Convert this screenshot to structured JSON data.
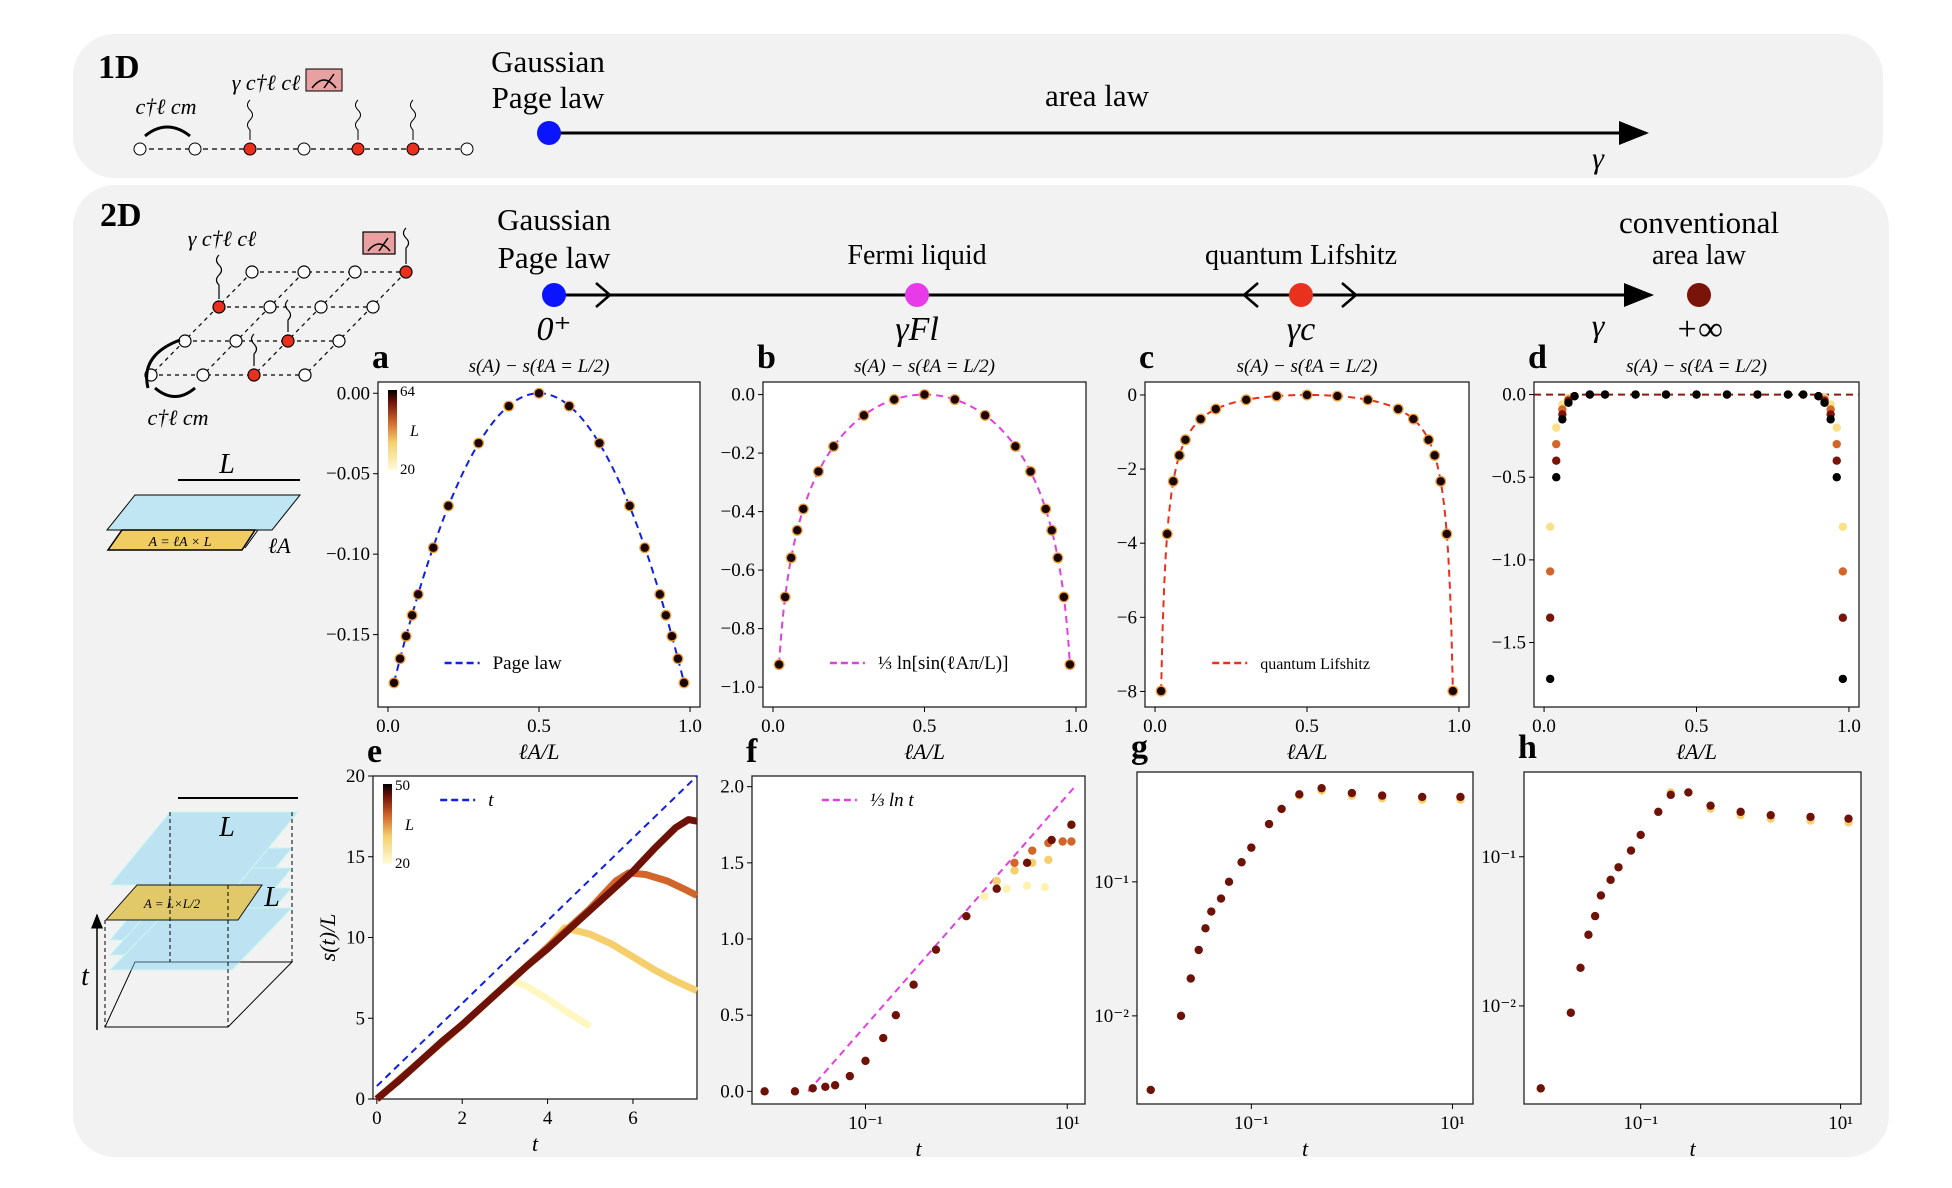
{
  "oneD": {
    "label": "1D",
    "hop_label": "c†ℓ cm",
    "meas_label": "γ c†ℓ cℓ",
    "point_label_1": "Gaussian",
    "point_label_2": "Page law",
    "region_label": "area law",
    "axis_label": "γ"
  },
  "twoD": {
    "label": "2D",
    "hop_label": "c†ℓ cm",
    "meas_label": "γ c†ℓ cℓ",
    "phases": [
      {
        "line1": "Gaussian",
        "line2": "Page law",
        "value": "0⁺",
        "color": "#0a14ff"
      },
      {
        "line1": "",
        "line2": "Fermi liquid",
        "value": "γFl",
        "color": "#e83ae8"
      },
      {
        "line1": "",
        "line2": "quantum Lifshitz",
        "value": "γc",
        "color": "#e8321e"
      },
      {
        "line1": "conventional",
        "line2": "area law",
        "value": "+∞",
        "color": "#7a1308"
      }
    ],
    "axis_label": "γ",
    "slab1": {
      "L": "L",
      "area": "A = ℓA × L",
      "width": "ℓA"
    },
    "slab2": {
      "L": "L",
      "area": "A = L×L/2",
      "side": "L",
      "time": "t"
    }
  },
  "colormap": {
    "L20": "#fff7c2",
    "L30": "#f5cf6c",
    "L40": "#d2662a",
    "L50": "#6e1208",
    "L64": "#000000"
  },
  "colorbars": [
    {
      "panel": "a",
      "max": "64",
      "label": "L",
      "min": "20"
    },
    {
      "panel": "e",
      "max": "50",
      "label": "L",
      "min": "20"
    }
  ],
  "chart_data": [
    {
      "id": "a",
      "type": "scatter",
      "title": "s(A) − s(ℓA = L/2)",
      "xlabel": "ℓA/L",
      "ylabel": "",
      "xlim": [
        -0.033,
        1.033
      ],
      "ylim": [
        -0.195,
        0.007
      ],
      "xscale": "linear",
      "yscale": "linear",
      "xticks": [
        0,
        0.5,
        1.0
      ],
      "xticklabels": [
        "0.0",
        "0.5",
        "1.0"
      ],
      "yticks": [
        0,
        -0.05,
        -0.1,
        -0.15
      ],
      "yticklabels": [
        "0.00",
        "−0.05",
        "−0.10",
        "−0.15"
      ],
      "x": [
        0.02,
        0.04,
        0.06,
        0.08,
        0.1,
        0.15,
        0.2,
        0.3,
        0.4,
        0.5,
        0.6,
        0.7,
        0.8,
        0.85,
        0.9,
        0.92,
        0.94,
        0.96,
        0.98
      ],
      "series": [
        {
          "color": "#1a0500",
          "y": [
            -0.18,
            -0.165,
            -0.151,
            -0.138,
            -0.125,
            -0.096,
            -0.07,
            -0.031,
            -0.008,
            0,
            -0.008,
            -0.031,
            -0.07,
            -0.096,
            -0.125,
            -0.138,
            -0.151,
            -0.165,
            -0.18
          ]
        }
      ],
      "fit": {
        "name": "Page law",
        "color": "#1020e0",
        "formula": "0.78*(x*(1-x)-0.25)"
      },
      "legend": "lower-center"
    },
    {
      "id": "b",
      "type": "scatter",
      "title": "s(A) − s(ℓA = L/2)",
      "xlabel": "ℓA/L",
      "ylabel": "",
      "xlim": [
        -0.033,
        1.033
      ],
      "ylim": [
        -1.068,
        0.043
      ],
      "xscale": "linear",
      "yscale": "linear",
      "xticks": [
        0,
        0.5,
        1.0
      ],
      "xticklabels": [
        "0.0",
        "0.5",
        "1.0"
      ],
      "yticks": [
        0,
        -0.2,
        -0.4,
        -0.6,
        -0.8,
        -1.0
      ],
      "yticklabels": [
        "0.0",
        "−0.2",
        "−0.4",
        "−0.6",
        "−0.8",
        "−1.0"
      ],
      "x": [
        0.02,
        0.04,
        0.06,
        0.08,
        0.1,
        0.15,
        0.2,
        0.3,
        0.4,
        0.5,
        0.6,
        0.7,
        0.8,
        0.85,
        0.9,
        0.92,
        0.94,
        0.96,
        0.98
      ],
      "series": [
        {
          "color": "#1a0500",
          "y": [
            -0.923,
            -0.692,
            -0.558,
            -0.464,
            -0.391,
            -0.263,
            -0.177,
            -0.071,
            -0.017,
            0,
            -0.017,
            -0.071,
            -0.177,
            -0.263,
            -0.391,
            -0.464,
            -0.558,
            -0.692,
            -0.923
          ]
        }
      ],
      "fit": {
        "name": "⅓ ln[sin(ℓAπ/L)]",
        "color": "#e040e0",
        "formula": "ln(sin(pi*x))/3"
      },
      "legend": "lower-center"
    },
    {
      "id": "c",
      "type": "scatter",
      "title": "s(A) − s(ℓA = L/2)",
      "xlabel": "ℓA/L",
      "ylabel": "",
      "xlim": [
        -0.033,
        1.033
      ],
      "ylim": [
        -8.42,
        0.35
      ],
      "xscale": "linear",
      "yscale": "linear",
      "xticks": [
        0,
        0.5,
        1.0
      ],
      "xticklabels": [
        "0.0",
        "0.5",
        "1.0"
      ],
      "yticks": [
        0,
        -2,
        -4,
        -6,
        -8
      ],
      "yticklabels": [
        "0",
        "−2",
        "−4",
        "−6",
        "−8"
      ],
      "x": [
        0.02,
        0.04,
        0.06,
        0.08,
        0.1,
        0.15,
        0.2,
        0.3,
        0.4,
        0.5,
        0.6,
        0.7,
        0.8,
        0.85,
        0.9,
        0.92,
        0.94,
        0.96,
        0.98
      ],
      "series": [
        {
          "color": "#1a0500",
          "y": [
            -7.99,
            -3.75,
            -2.33,
            -1.63,
            -1.21,
            -0.65,
            -0.38,
            -0.13,
            -0.03,
            0,
            -0.03,
            -0.13,
            -0.38,
            -0.65,
            -1.21,
            -1.63,
            -2.33,
            -3.75,
            -7.99
          ]
        }
      ],
      "fit": {
        "name": "quantum Lifshitz",
        "color": "#e8301c",
        "formula": "-0.17*(1/x+1/(1-x)-4)"
      },
      "legend": "lower-center"
    },
    {
      "id": "d",
      "type": "scatter",
      "title": "s(A) − s(ℓA = L/2)",
      "xlabel": "ℓA/L",
      "ylabel": "",
      "xlim": [
        -0.033,
        1.033
      ],
      "ylim": [
        -1.89,
        0.076
      ],
      "xscale": "linear",
      "yscale": "linear",
      "xticks": [
        0,
        0.5,
        1.0
      ],
      "xticklabels": [
        "0.0",
        "0.5",
        "1.0"
      ],
      "yticks": [
        0,
        -0.5,
        -1.0,
        -1.5
      ],
      "yticklabels": [
        "0.0",
        "−0.5",
        "−1.0",
        "−1.5"
      ],
      "x": [
        0.02,
        0.04,
        0.06,
        0.08,
        0.1,
        0.15,
        0.2,
        0.3,
        0.4,
        0.5,
        0.6,
        0.7,
        0.8,
        0.85,
        0.9,
        0.92,
        0.94,
        0.96,
        0.98
      ],
      "series": [
        {
          "color": "#fbe08a",
          "y": [
            -0.8,
            -0.2,
            -0.06,
            -0.02,
            -0.01,
            0,
            0,
            0,
            0,
            0,
            0,
            0,
            0,
            0,
            -0.01,
            -0.02,
            -0.06,
            -0.2,
            -0.8
          ]
        },
        {
          "color": "#d2662a",
          "y": [
            -1.07,
            -0.3,
            -0.09,
            -0.03,
            -0.01,
            0,
            0,
            0,
            0,
            0,
            0,
            0,
            0,
            0,
            -0.01,
            -0.03,
            -0.09,
            -0.3,
            -1.07
          ]
        },
        {
          "color": "#7a1308",
          "y": [
            -1.35,
            -0.4,
            -0.12,
            -0.04,
            -0.01,
            0,
            0,
            0,
            0,
            0,
            0,
            0,
            0,
            0,
            -0.01,
            -0.04,
            -0.12,
            -0.4,
            -1.35
          ]
        },
        {
          "color": "#000000",
          "y": [
            -1.72,
            -0.5,
            -0.15,
            -0.05,
            -0.01,
            0,
            0,
            0,
            0,
            0,
            0,
            0,
            0,
            0,
            -0.01,
            -0.05,
            -0.15,
            -0.5,
            -1.72
          ]
        }
      ],
      "hline": {
        "y": 0,
        "color": "#8a1a10"
      }
    },
    {
      "id": "e",
      "type": "line",
      "title": "",
      "xlabel": "t",
      "ylabel": "s(t)/L",
      "xlim": [
        -0.09,
        7.5
      ],
      "ylim": [
        0,
        20
      ],
      "xscale": "linear",
      "yscale": "linear",
      "xticks": [
        0,
        2,
        4,
        6
      ],
      "xticklabels": [
        "0",
        "2",
        "4",
        "6"
      ],
      "yticks": [
        0,
        5,
        10,
        15,
        20
      ],
      "yticklabels": [
        "0",
        "5",
        "10",
        "15",
        "20"
      ],
      "series": [
        {
          "color": "#fff7c2",
          "x": [
            0,
            1,
            2,
            3,
            3.1,
            3.5,
            4,
            4.5,
            5
          ],
          "y": [
            0,
            2.3,
            4.6,
            7.0,
            7.4,
            7.0,
            6.2,
            5.3,
            4.5
          ]
        },
        {
          "color": "#f5cf6c",
          "x": [
            0,
            1,
            2,
            3,
            4,
            4.4,
            5,
            5.5,
            6,
            6.5,
            7,
            7.5
          ],
          "y": [
            0,
            2.3,
            4.6,
            7.0,
            9.4,
            10.6,
            10.2,
            9.6,
            8.8,
            8.0,
            7.3,
            6.7
          ]
        },
        {
          "color": "#d2662a",
          "x": [
            0,
            1,
            2,
            3,
            4,
            5,
            5.6,
            5.9,
            6.3,
            6.8,
            7.2,
            7.5
          ],
          "y": [
            0,
            2.3,
            4.6,
            7.0,
            9.4,
            11.8,
            13.5,
            14.0,
            13.9,
            13.5,
            13.0,
            12.6
          ]
        },
        {
          "color": "#6e1208",
          "x": [
            0,
            0.5,
            1,
            1.5,
            2,
            2.5,
            3,
            3.5,
            4,
            4.5,
            5,
            5.5,
            6,
            6.5,
            7,
            7.3,
            7.5
          ],
          "y": [
            0,
            1.1,
            2.3,
            3.5,
            4.6,
            5.8,
            7.0,
            8.2,
            9.3,
            10.5,
            11.7,
            12.9,
            14.1,
            15.5,
            16.8,
            17.3,
            17.2
          ]
        }
      ],
      "fit": {
        "name": "t",
        "color": "#1020e0",
        "x": [
          0,
          7.5
        ],
        "y": [
          0.8,
          20
        ]
      },
      "legend": "top-center"
    },
    {
      "id": "f",
      "type": "scatter",
      "title": "",
      "xlabel": "t",
      "ylabel": "",
      "xlim": [
        0.0075,
        15
      ],
      "ylim": [
        -0.083,
        2.07
      ],
      "xscale": "log",
      "yscale": "linear",
      "xticks": [
        0.1,
        10
      ],
      "xticklabels": [
        "10⁻¹",
        "10¹"
      ],
      "yticks": [
        0,
        0.5,
        1.0,
        1.5,
        2.0
      ],
      "yticklabels": [
        "0.0",
        "0.5",
        "1.0",
        "1.5",
        "2.0"
      ],
      "series": [
        {
          "color": "#fff2b0",
          "x": [
            1.5,
            2.5,
            4,
            6
          ],
          "y": [
            1.28,
            1.33,
            1.35,
            1.34
          ]
        },
        {
          "color": "#f5cf6c",
          "x": [
            2,
            3,
            4.5,
            6.5
          ],
          "y": [
            1.38,
            1.45,
            1.5,
            1.52
          ]
        },
        {
          "color": "#d2662a",
          "x": [
            3,
            4.5,
            6.5,
            9,
            11
          ],
          "y": [
            1.5,
            1.58,
            1.63,
            1.64,
            1.64
          ]
        },
        {
          "color": "#6e1208",
          "x": [
            0.01,
            0.02,
            0.03,
            0.04,
            0.05,
            0.07,
            0.1,
            0.15,
            0.2,
            0.3,
            0.5,
            1,
            2,
            4,
            7,
            11
          ],
          "y": [
            0,
            0,
            0.02,
            0.03,
            0.04,
            0.1,
            0.2,
            0.35,
            0.5,
            0.7,
            0.93,
            1.15,
            1.33,
            1.5,
            1.65,
            1.75
          ]
        }
      ],
      "fit": {
        "name": "⅓ ln t",
        "color": "#e040e0",
        "x": [
          0.027,
          11.9
        ],
        "y": [
          0,
          2.0
        ]
      },
      "legend": "top-center"
    },
    {
      "id": "g",
      "type": "scatter",
      "title": "",
      "xlabel": "t",
      "ylabel": "",
      "xlim": [
        0.0073,
        16
      ],
      "ylim": [
        0.0022,
        0.66
      ],
      "xscale": "log",
      "yscale": "log",
      "xticks": [
        0.1,
        10
      ],
      "xticklabels": [
        "10⁻¹",
        "10¹"
      ],
      "yticks": [
        0.01,
        0.1
      ],
      "yticklabels": [
        "10⁻²",
        "10⁻¹"
      ],
      "series": [
        {
          "color": "#f5cf6c",
          "x": [
            0.3,
            0.5,
            1,
            2,
            5,
            12
          ],
          "y": [
            0.44,
            0.48,
            0.44,
            0.42,
            0.41,
            0.41
          ]
        },
        {
          "color": "#6e1208",
          "x": [
            0.01,
            0.02,
            0.025,
            0.03,
            0.035,
            0.04,
            0.05,
            0.06,
            0.08,
            0.1,
            0.15,
            0.2,
            0.3,
            0.5,
            1,
            2,
            5,
            12
          ],
          "y": [
            0.0028,
            0.01,
            0.019,
            0.031,
            0.045,
            0.06,
            0.075,
            0.1,
            0.14,
            0.18,
            0.27,
            0.35,
            0.45,
            0.5,
            0.46,
            0.44,
            0.43,
            0.43
          ]
        }
      ]
    },
    {
      "id": "h",
      "type": "scatter",
      "title": "",
      "xlabel": "t",
      "ylabel": "",
      "xlim": [
        0.0068,
        16
      ],
      "ylim": [
        0.0022,
        0.37
      ],
      "xscale": "log",
      "yscale": "log",
      "xticks": [
        0.1,
        10
      ],
      "xticklabels": [
        "10⁻¹",
        "10¹"
      ],
      "yticks": [
        0.01,
        0.1
      ],
      "yticklabels": [
        "10⁻²",
        "10⁻¹"
      ],
      "series": [
        {
          "color": "#f5cf6c",
          "x": [
            0.2,
            0.3,
            0.5,
            1,
            2,
            5,
            12
          ],
          "y": [
            0.27,
            0.27,
            0.21,
            0.19,
            0.18,
            0.175,
            0.17
          ]
        },
        {
          "color": "#6e1208",
          "x": [
            0.01,
            0.02,
            0.025,
            0.03,
            0.035,
            0.04,
            0.05,
            0.06,
            0.08,
            0.1,
            0.15,
            0.2,
            0.3,
            0.5,
            1,
            2,
            5,
            12
          ],
          "y": [
            0.0028,
            0.009,
            0.018,
            0.03,
            0.04,
            0.055,
            0.07,
            0.085,
            0.11,
            0.14,
            0.2,
            0.26,
            0.27,
            0.22,
            0.2,
            0.19,
            0.185,
            0.18
          ]
        }
      ]
    }
  ]
}
